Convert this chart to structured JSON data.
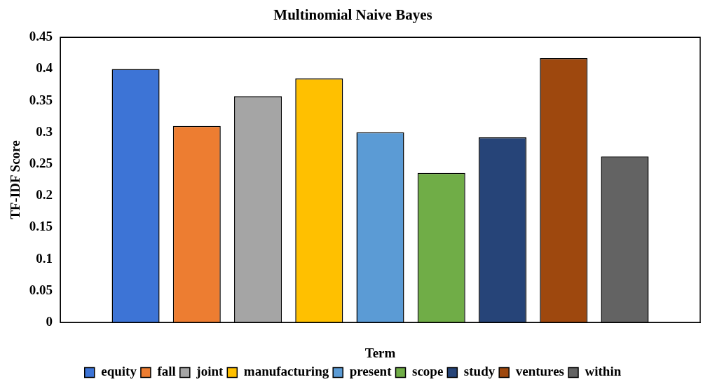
{
  "chart_data": {
    "type": "bar",
    "title": "Multinomial Naive Bayes",
    "xlabel": "Term",
    "ylabel": "TF-IDF Score",
    "categories": [
      null
    ],
    "series": [
      {
        "name": "equity",
        "color": "#3d74d6",
        "values": [
          0.4
        ]
      },
      {
        "name": "fall",
        "color": "#ed7d31",
        "values": [
          0.31
        ]
      },
      {
        "name": "joint",
        "color": "#a5a5a5",
        "values": [
          0.357
        ]
      },
      {
        "name": "manufacturing",
        "color": "#ffc000",
        "values": [
          0.385
        ]
      },
      {
        "name": "present",
        "color": "#5b9bd5",
        "values": [
          0.3
        ]
      },
      {
        "name": "scope",
        "color": "#70ad47",
        "values": [
          0.236
        ]
      },
      {
        "name": "study",
        "color": "#264478",
        "values": [
          0.292
        ]
      },
      {
        "name": "ventures",
        "color": "#9e480e",
        "values": [
          0.417
        ]
      },
      {
        "name": "within",
        "color": "#636363",
        "values": [
          0.262
        ]
      }
    ],
    "ylim": [
      0,
      0.45
    ],
    "yticks": [
      0,
      0.05,
      0.1,
      0.15,
      0.2,
      0.25,
      0.3,
      0.35,
      0.4,
      0.45
    ],
    "grid": false,
    "legend": "bottom"
  }
}
